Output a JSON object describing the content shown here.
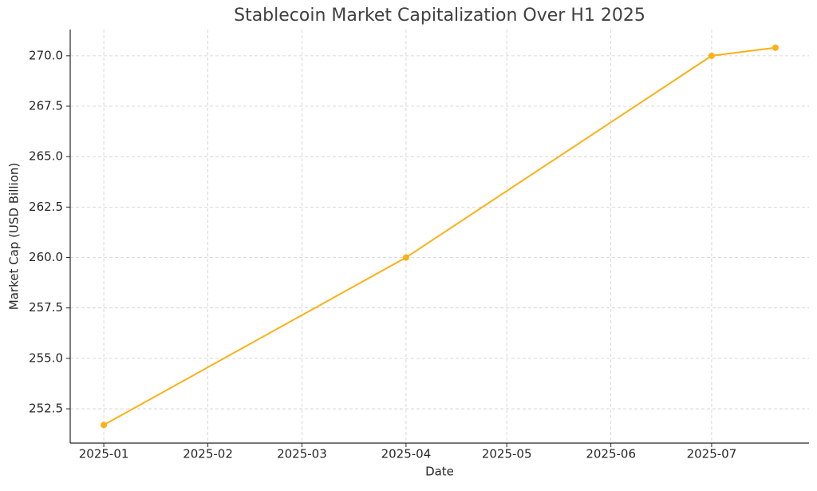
{
  "chart_data": {
    "type": "line",
    "title": "Stablecoin Market Capitalization Over H1 2025",
    "xlabel": "Date",
    "ylabel": "Market Cap (USD Billion)",
    "x": [
      "2025-01-01",
      "2025-04-01",
      "2025-07-01",
      "2025-07-20"
    ],
    "values": [
      251.7,
      260.0,
      270.0,
      270.4
    ],
    "color": "#fbb117",
    "xlim": [
      "2024-12-22",
      "2025-07-30"
    ],
    "xticks": [
      "2025-01",
      "2025-02",
      "2025-03",
      "2025-04",
      "2025-05",
      "2025-06",
      "2025-07"
    ],
    "ylim": [
      250.8,
      271.3
    ],
    "yticks": [
      {
        "value": 252.5,
        "label": "252.5"
      },
      {
        "value": 255,
        "label": "255.0"
      },
      {
        "value": 257.5,
        "label": "257.5"
      },
      {
        "value": 260,
        "label": "260.0"
      },
      {
        "value": 262.5,
        "label": "262.5"
      },
      {
        "value": 265,
        "label": "265.0"
      },
      {
        "value": 267.5,
        "label": "267.5"
      },
      {
        "value": 270,
        "label": "270.0"
      }
    ],
    "grid": true
  }
}
